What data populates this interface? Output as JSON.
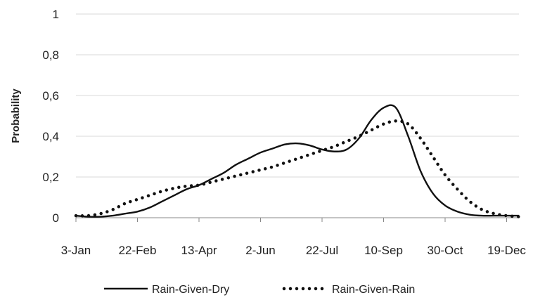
{
  "chart_data": {
    "type": "line",
    "title": "",
    "xlabel": "",
    "ylabel": "Probability",
    "ylim": [
      0,
      1
    ],
    "y_ticks": [
      "0",
      "0,2",
      "0,4",
      "0,6",
      "0,8",
      "1"
    ],
    "y_tick_values": [
      0,
      0.2,
      0.4,
      0.6,
      0.8,
      1
    ],
    "x_ticks": [
      "3-Jan",
      "22-Feb",
      "13-Apr",
      "2-Jun",
      "22-Jul",
      "10-Sep",
      "30-Oct",
      "19-Dec"
    ],
    "x": [
      "3-Jan",
      "13-Jan",
      "23-Jan",
      "2-Feb",
      "12-Feb",
      "22-Feb",
      "4-Mar",
      "14-Mar",
      "24-Mar",
      "3-Apr",
      "13-Apr",
      "23-Apr",
      "3-May",
      "13-May",
      "23-May",
      "2-Jun",
      "12-Jun",
      "22-Jun",
      "2-Jul",
      "12-Jul",
      "22-Jul",
      "1-Aug",
      "11-Aug",
      "21-Aug",
      "31-Aug",
      "10-Sep",
      "20-Sep",
      "30-Sep",
      "10-Oct",
      "20-Oct",
      "30-Oct",
      "9-Nov",
      "19-Nov",
      "29-Nov",
      "9-Dec",
      "19-Dec",
      "29-Dec"
    ],
    "series": [
      {
        "name": "Rain-Given-Dry",
        "style": "solid",
        "values": [
          0.01,
          0.005,
          0.005,
          0.01,
          0.02,
          0.03,
          0.05,
          0.08,
          0.11,
          0.14,
          0.16,
          0.19,
          0.22,
          0.26,
          0.29,
          0.32,
          0.34,
          0.36,
          0.365,
          0.355,
          0.335,
          0.325,
          0.335,
          0.39,
          0.48,
          0.54,
          0.54,
          0.4,
          0.23,
          0.12,
          0.06,
          0.03,
          0.015,
          0.01,
          0.01,
          0.01,
          0.01
        ]
      },
      {
        "name": "Rain-Given-Rain",
        "style": "dotted",
        "values": [
          0.01,
          0.01,
          0.02,
          0.04,
          0.07,
          0.09,
          0.11,
          0.13,
          0.145,
          0.155,
          0.16,
          0.175,
          0.19,
          0.205,
          0.22,
          0.235,
          0.25,
          0.27,
          0.29,
          0.31,
          0.33,
          0.35,
          0.375,
          0.4,
          0.43,
          0.46,
          0.475,
          0.46,
          0.39,
          0.3,
          0.21,
          0.14,
          0.08,
          0.04,
          0.02,
          0.01,
          0.005
        ]
      }
    ],
    "legend": {
      "position": "bottom"
    },
    "grid": {
      "horizontal": true,
      "vertical": false
    },
    "colors": {
      "line": "#111111",
      "grid": "#d9d9d9",
      "axis": "#888888"
    }
  }
}
